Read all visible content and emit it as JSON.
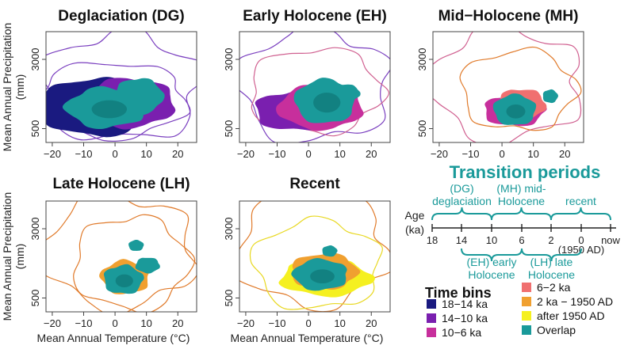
{
  "chart_data": [
    {
      "id": "dg",
      "type": "contour",
      "title": "Deglaciation (DG)",
      "xlabel": "",
      "ylabel": "Mean Annual Precipitation\n(mm)",
      "xticks": [
        "−20",
        "−10",
        "0",
        "10",
        "20"
      ],
      "yticks": [
        "500",
        "3000"
      ],
      "xlim": [
        -22,
        26
      ],
      "ylim": [
        0,
        4000
      ],
      "regions": [
        "18−14 ka",
        "14−10 ka",
        "Overlap"
      ]
    },
    {
      "id": "eh",
      "type": "contour",
      "title": "Early Holocene (EH)",
      "xlabel": "",
      "ylabel": "",
      "xticks": [
        "−20",
        "−10",
        "0",
        "10",
        "20"
      ],
      "yticks": [
        "500",
        "3000"
      ],
      "xlim": [
        -22,
        26
      ],
      "ylim": [
        0,
        4000
      ],
      "regions": [
        "14−10 ka",
        "10−6 ka",
        "Overlap"
      ]
    },
    {
      "id": "mh",
      "type": "contour",
      "title": "Mid−Holocene (MH)",
      "xlabel": "",
      "ylabel": "",
      "xticks": [
        "−20",
        "−10",
        "0",
        "10",
        "20"
      ],
      "yticks": [
        "500",
        "3000"
      ],
      "xlim": [
        -22,
        26
      ],
      "ylim": [
        0,
        4000
      ],
      "regions": [
        "10−6 ka",
        "6−2 ka",
        "Overlap"
      ]
    },
    {
      "id": "lh",
      "type": "contour",
      "title": "Late Holocene (LH)",
      "xlabel": "Mean Annual Temperature (°C)",
      "ylabel": "Mean Annual Precipitation\n(mm)",
      "xticks": [
        "−20",
        "−10",
        "0",
        "10",
        "20"
      ],
      "yticks": [
        "500",
        "3000"
      ],
      "xlim": [
        -22,
        26
      ],
      "ylim": [
        0,
        4000
      ],
      "regions": [
        "6−2 ka",
        "2 ka − 1950 AD",
        "Overlap"
      ]
    },
    {
      "id": "rc",
      "type": "contour",
      "title": "Recent",
      "xlabel": "Mean Annual Temperature (°C)",
      "ylabel": "",
      "xticks": [
        "−20",
        "−10",
        "0",
        "10",
        "20"
      ],
      "yticks": [
        "500",
        "3000"
      ],
      "xlim": [
        -22,
        26
      ],
      "ylim": [
        0,
        4000
      ],
      "regions": [
        "2 ka − 1950 AD",
        "after 1950 AD",
        "Overlap"
      ]
    }
  ],
  "timeline": {
    "title": "Transition periods",
    "age_label": [
      "Age",
      "(ka)"
    ],
    "ticks": [
      "18",
      "14",
      "10",
      "6",
      "2",
      "0",
      "now"
    ],
    "tick_note": "(1950 AD)",
    "upper_periods": [
      [
        "(DG)",
        "deglaciation"
      ],
      [
        "(MH) mid-",
        "Holocene"
      ],
      [
        "recent"
      ]
    ],
    "lower_periods": [
      [
        "(EH) early",
        "Holocene"
      ],
      [
        "(LH) late",
        "Holocene"
      ]
    ]
  },
  "legend": {
    "title": "Time bins",
    "items": [
      {
        "label": "18−14 ka",
        "color": "#1a1a80"
      },
      {
        "label": "14−10 ka",
        "color": "#7a1faf"
      },
      {
        "label": "10−6 ka",
        "color": "#c72f9c"
      },
      {
        "label": "6−2 ka",
        "color": "#f07070"
      },
      {
        "label": "2 ka − 1950 AD",
        "color": "#f0a030"
      },
      {
        "label": "after 1950 AD",
        "color": "#f5f020"
      },
      {
        "label": "Overlap",
        "color": "#1a9a9a"
      }
    ]
  },
  "colors": {
    "overlap": "#1a9a9a",
    "overlap_dark": "#0d6d6d",
    "contour_purple": "#7a3fbf",
    "contour_orange": "#e07a2a",
    "contour_yellow": "#e8d820",
    "contour_pink": "#d06090",
    "teal_text": "#1a9a9a"
  }
}
